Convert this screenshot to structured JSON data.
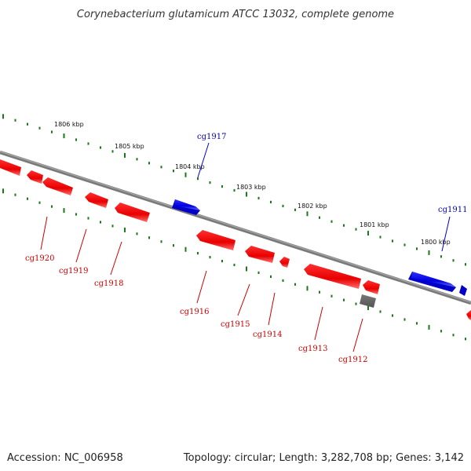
{
  "title": "Corynebacterium glutamicum ATCC 13032, complete genome",
  "footer": {
    "accession": "Accession: NC_006958",
    "summary": "Topology: circular; Length: 3,282,708 bp; Genes: 3,142"
  },
  "colors": {
    "forward_gene": "#1a1aee",
    "reverse_gene": "#ee1111",
    "other_feature": "#666666",
    "ticks": "#1a7a1a",
    "backbone": "#808080"
  },
  "kbp_ticks": [
    "1806 kbp",
    "1805 kbp",
    "1804 kbp",
    "1803 kbp",
    "1802 kbp",
    "1801 kbp",
    "1800 kbp"
  ],
  "gene_labels": {
    "forward": [
      "cg1917",
      "cg1911"
    ],
    "reverse": [
      "cg1920",
      "cg1919",
      "cg1918",
      "cg1916",
      "cg1915",
      "cg1914",
      "cg1913",
      "cg1912"
    ]
  }
}
